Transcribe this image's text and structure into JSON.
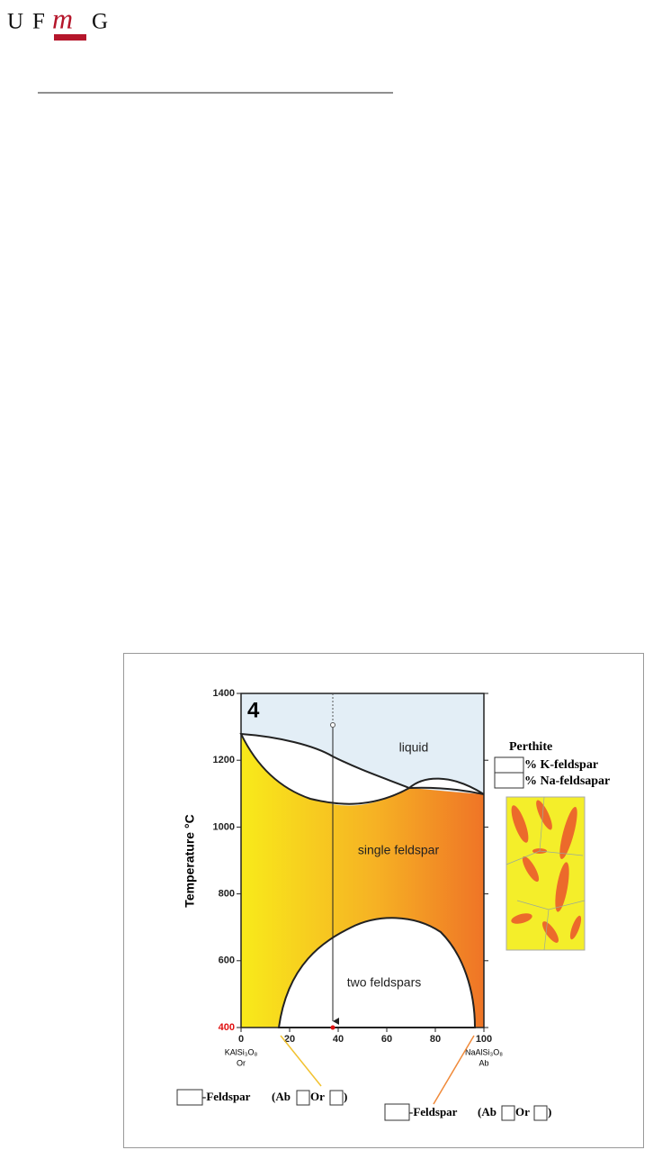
{
  "header": {
    "logo_letters": [
      "U",
      "F",
      "m",
      "G"
    ]
  },
  "figure": {
    "panel_label": "4",
    "y_axis_label": "Temperature °C",
    "ylim": [
      400,
      1400
    ],
    "yticks": [
      400,
      600,
      800,
      1000,
      1200,
      1400
    ],
    "xlim": [
      0,
      100
    ],
    "xticks": [
      0,
      20,
      40,
      60,
      80,
      100
    ],
    "x_end_labels": [
      {
        "formula": "KAlSi₃O₈",
        "abbr": "Or"
      },
      {
        "formula": "NaAlSi₃O₈",
        "abbr": "Ab"
      }
    ],
    "regions": [
      "liquid",
      "single feldspar",
      "two feldspars"
    ],
    "perthite": {
      "title": "Perthite",
      "lines": [
        "% K-feldspar",
        "% Na-feldsapar"
      ]
    },
    "captions": [
      {
        "parts": [
          "-Feldspar",
          "(Ab",
          "Or",
          ")"
        ]
      },
      {
        "parts": [
          "-Feldspar",
          "(Ab",
          "Or",
          ")"
        ]
      }
    ]
  }
}
